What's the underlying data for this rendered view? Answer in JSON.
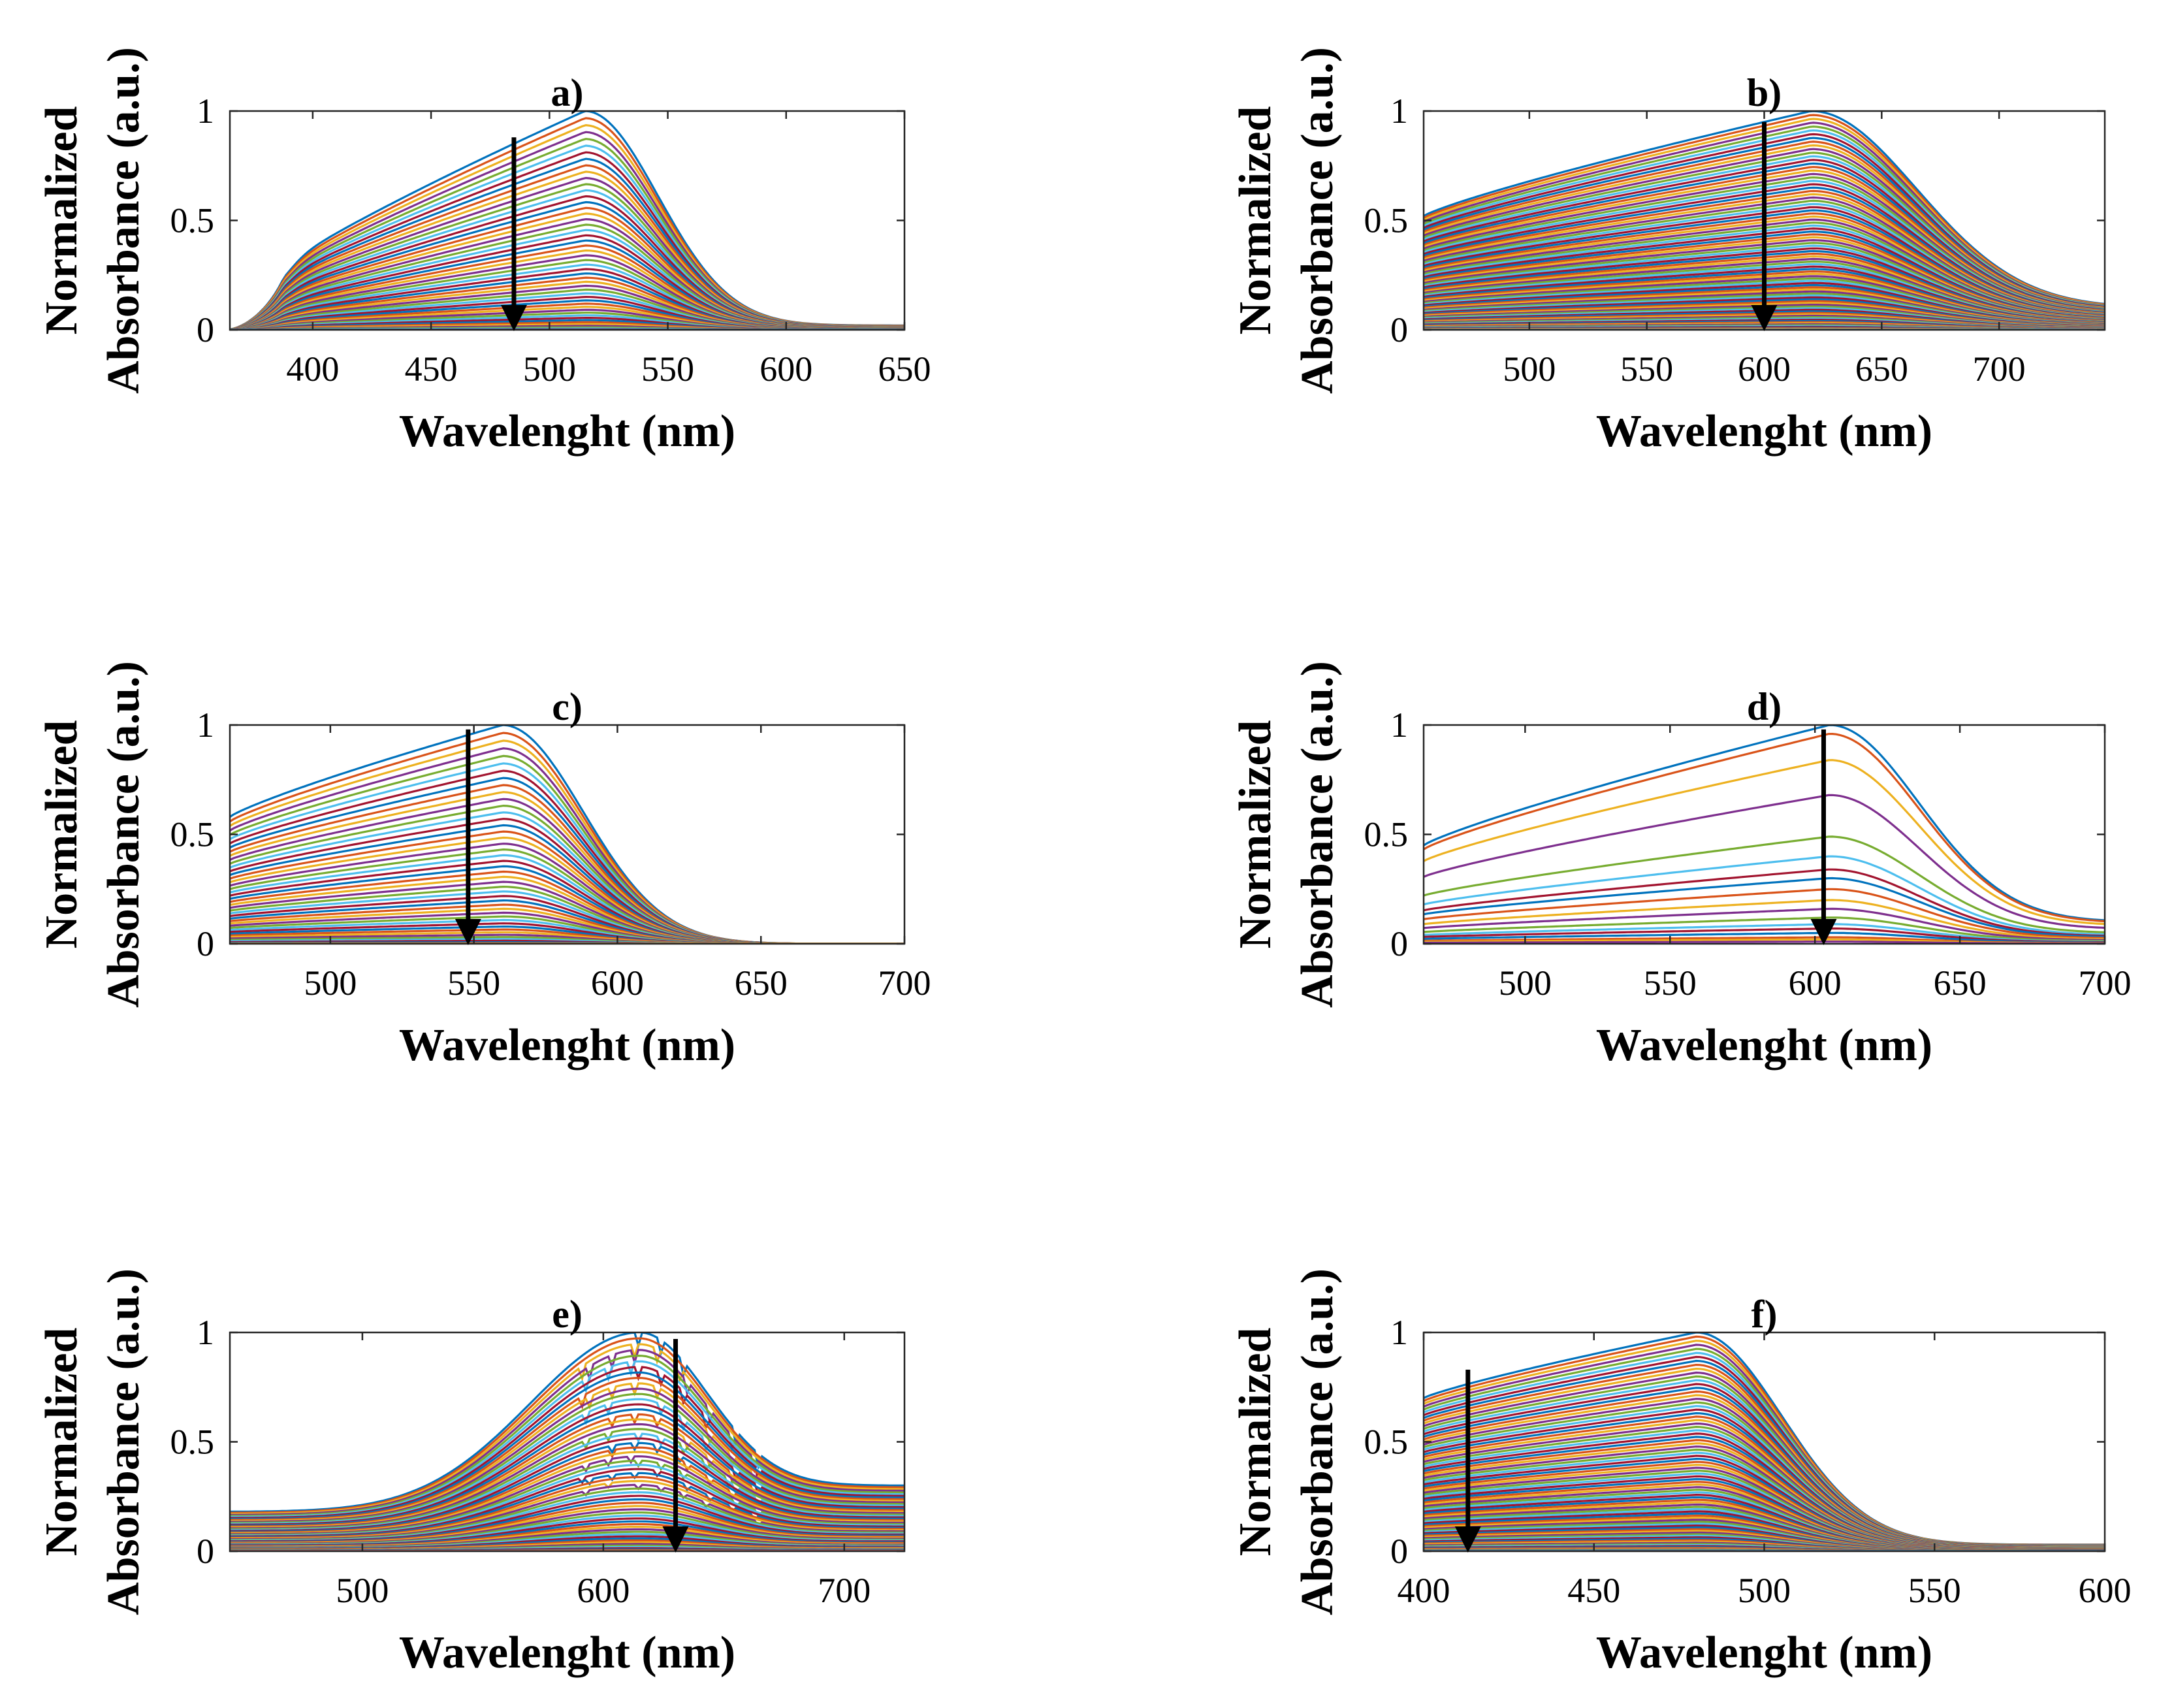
{
  "figure": {
    "line_colors": [
      "#0072BD",
      "#D95319",
      "#EDB120",
      "#7E2F8E",
      "#77AC30",
      "#4DBEEE",
      "#A2142F"
    ],
    "arrow_color": "#000000"
  },
  "chart_data": [
    {
      "type": "line",
      "title": "a)",
      "xlabel": "Wavelenght (nm)",
      "ylabel_line1": "Normalized",
      "ylabel_line2": "Absorbance (a.u.)",
      "xlim": [
        365,
        650
      ],
      "ylim": [
        0,
        1
      ],
      "xticks": [
        400,
        450,
        500,
        550,
        600,
        650
      ],
      "yticks": [
        0,
        0.5,
        1
      ],
      "n_series": 50,
      "profile": {
        "start": 365,
        "peak": 515,
        "fall": 55,
        "end_level": 0.02,
        "start_level": 0.02,
        "base_level": 0.38,
        "shoulder": [
          390,
          0.1
        ]
      },
      "arrow": {
        "x": 485,
        "y_from": 0.88,
        "y_to": 0.0
      }
    },
    {
      "type": "line",
      "title": "b)",
      "xlabel": "Wavelenght (nm)",
      "ylabel_line1": "Normalized",
      "ylabel_line2": "Absorbance (a.u.)",
      "xlim": [
        455,
        745
      ],
      "ylim": [
        0,
        1
      ],
      "xticks": [
        500,
        550,
        600,
        650,
        700
      ],
      "yticks": [
        0,
        0.5,
        1
      ],
      "n_series": 90,
      "profile": {
        "start": 455,
        "peak": 620,
        "fall": 80,
        "end_level": 0.1,
        "start_level": 0.52,
        "base_level": 0.55
      },
      "arrow": {
        "x": 600,
        "y_from": 0.95,
        "y_to": 0.0
      }
    },
    {
      "type": "line",
      "title": "c)",
      "xlabel": "Wavelenght (nm)",
      "ylabel_line1": "Normalized",
      "ylabel_line2": "Absorbance (a.u.)",
      "xlim": [
        465,
        700
      ],
      "ylim": [
        0,
        1
      ],
      "xticks": [
        500,
        550,
        600,
        650,
        700
      ],
      "yticks": [
        0,
        0.5,
        1
      ],
      "n_series": 45,
      "profile": {
        "start": 465,
        "peak": 560,
        "fall": 50,
        "end_level": 0.0,
        "start_level": 0.58,
        "base_level": 0.6
      },
      "arrow": {
        "x": 548,
        "y_from": 0.98,
        "y_to": 0.0
      }
    },
    {
      "type": "line",
      "title": "d)",
      "xlabel": "Wavelenght (nm)",
      "ylabel_line1": "Normalized",
      "ylabel_line2": "Absorbance (a.u.)",
      "xlim": [
        465,
        700
      ],
      "ylim": [
        0,
        1
      ],
      "xticks": [
        500,
        550,
        600,
        650,
        700
      ],
      "yticks": [
        0,
        0.5,
        1
      ],
      "series_levels": [
        1.0,
        0.96,
        0.84,
        0.68,
        0.49,
        0.4,
        0.34,
        0.3,
        0.25,
        0.2,
        0.16,
        0.12,
        0.09,
        0.07,
        0.05,
        0.03,
        0.02,
        0.01
      ],
      "profile": {
        "start": 465,
        "peak": 605,
        "fall": 55,
        "end_level": 0.1,
        "start_level": 0.45,
        "base_level": 0.46
      },
      "arrow": {
        "x": 603,
        "y_from": 0.98,
        "y_to": 0.0
      }
    },
    {
      "type": "line",
      "title": "e)",
      "xlabel": "Wavelenght (nm)",
      "ylabel_line1": "Normalized",
      "ylabel_line2": "Absorbance (a.u.)",
      "xlim": [
        445,
        725
      ],
      "ylim": [
        0,
        1
      ],
      "xticks": [
        500,
        600,
        700
      ],
      "yticks": [
        0,
        0.5,
        1
      ],
      "n_series": 60,
      "profile": {
        "start": 445,
        "peak": 615,
        "fall": 50,
        "end_level": 0.3,
        "start_level": 0.18,
        "base_level": 0.17,
        "rise_width": 70
      },
      "arrow": {
        "x": 630,
        "y_from": 0.97,
        "y_to": 0.0
      }
    },
    {
      "type": "line",
      "title": "f)",
      "xlabel": "Wavelenght (nm)",
      "ylabel_line1": "Normalized",
      "ylabel_line2": "Absorbance (a.u.)",
      "xlim": [
        400,
        600
      ],
      "ylim": [
        0,
        1
      ],
      "xticks": [
        400,
        450,
        500,
        550,
        600
      ],
      "yticks": [
        0,
        0.5,
        1
      ],
      "n_series": 85,
      "profile": {
        "start": 400,
        "peak": 480,
        "fall": 45,
        "end_level": 0.03,
        "start_level": 0.7,
        "base_level": 0.72
      },
      "arrow": {
        "x": 413,
        "y_from": 0.83,
        "y_to": 0.0
      }
    }
  ]
}
